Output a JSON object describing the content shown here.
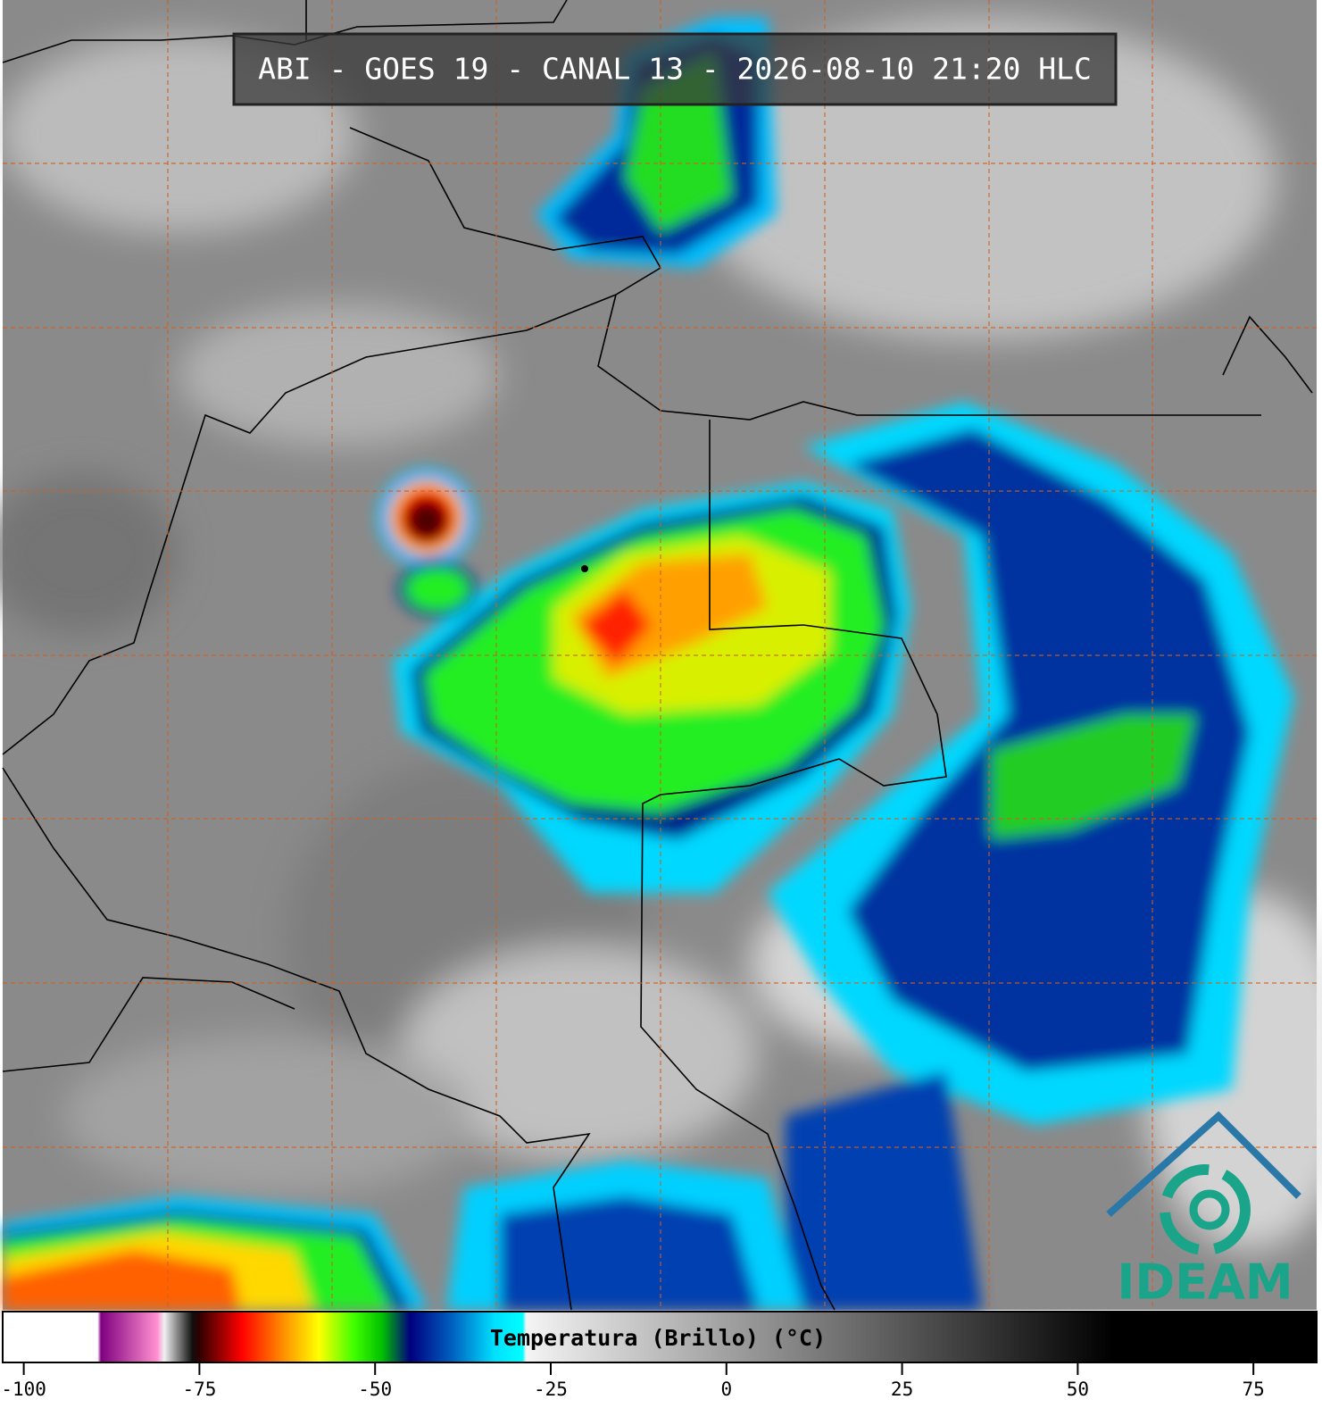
{
  "title": "ABI - GOES 19 - CANAL 13 - 2026-08-10 21:20 HLC",
  "colorbar": {
    "label": "Temperatura (Brillo) (°C)",
    "range": [
      -103,
      84
    ],
    "ticks": [
      -100,
      -75,
      -50,
      -25,
      0,
      25,
      50,
      75
    ],
    "stops": [
      [
        -103,
        "#ffffff"
      ],
      [
        -89.5,
        "#ffffff"
      ],
      [
        -89,
        "#800080"
      ],
      [
        -81,
        "#ff90d0"
      ],
      [
        -80,
        "#f0f0f0"
      ],
      [
        -76,
        "#101010"
      ],
      [
        -75,
        "#300000"
      ],
      [
        -69,
        "#ff0000"
      ],
      [
        -63,
        "#ff9000"
      ],
      [
        -58,
        "#ffff00"
      ],
      [
        -53,
        "#40ff00"
      ],
      [
        -49,
        "#00c000"
      ],
      [
        -45,
        "#000080"
      ],
      [
        -39,
        "#0060c0"
      ],
      [
        -33,
        "#00e0ff"
      ],
      [
        -29,
        "#00ffff"
      ],
      [
        -28.5,
        "#f4f4f4"
      ],
      [
        55,
        "#000000"
      ],
      [
        84,
        "#000000"
      ]
    ]
  },
  "logo": "IDEAM"
}
